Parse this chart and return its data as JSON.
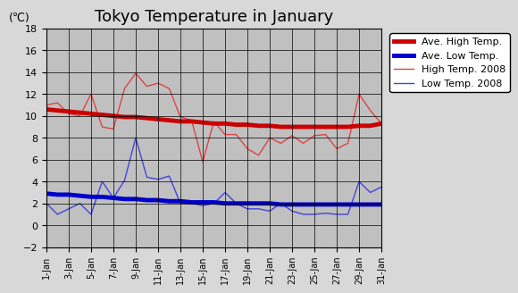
{
  "title": "Tokyo Temperature in January",
  "ylabel": "(℃)",
  "ylim": [
    -2,
    18
  ],
  "yticks": [
    -2,
    0,
    2,
    4,
    6,
    8,
    10,
    12,
    14,
    16,
    18
  ],
  "days": [
    1,
    2,
    3,
    4,
    5,
    6,
    7,
    8,
    9,
    10,
    11,
    12,
    13,
    14,
    15,
    16,
    17,
    18,
    19,
    20,
    21,
    22,
    23,
    24,
    25,
    26,
    27,
    28,
    29,
    30,
    31
  ],
  "xtick_labels": [
    "1-Jan",
    "3-Jan",
    "5-Jan",
    "7-Jan",
    "9-Jan",
    "11-Jan",
    "13-Jan",
    "15-Jan",
    "17-Jan",
    "19-Jan",
    "21-Jan",
    "23-Jan",
    "25-Jan",
    "27-Jan",
    "29-Jan",
    "31-Jan"
  ],
  "xtick_positions": [
    1,
    3,
    5,
    7,
    9,
    11,
    13,
    15,
    17,
    19,
    21,
    23,
    25,
    27,
    29,
    31
  ],
  "ave_high": [
    10.6,
    10.5,
    10.4,
    10.3,
    10.2,
    10.1,
    10.0,
    9.9,
    9.9,
    9.8,
    9.7,
    9.6,
    9.5,
    9.5,
    9.4,
    9.3,
    9.3,
    9.2,
    9.2,
    9.1,
    9.1,
    9.0,
    9.0,
    9.0,
    9.0,
    9.0,
    9.0,
    9.0,
    9.1,
    9.1,
    9.3
  ],
  "ave_low": [
    2.9,
    2.8,
    2.8,
    2.7,
    2.6,
    2.6,
    2.5,
    2.4,
    2.4,
    2.3,
    2.3,
    2.2,
    2.2,
    2.1,
    2.1,
    2.1,
    2.0,
    2.0,
    2.0,
    2.0,
    2.0,
    1.9,
    1.9,
    1.9,
    1.9,
    1.9,
    1.9,
    1.9,
    1.9,
    1.9,
    1.9
  ],
  "high_2008": [
    11.0,
    11.2,
    10.2,
    10.0,
    12.0,
    9.0,
    8.8,
    12.5,
    13.9,
    12.7,
    13.0,
    12.5,
    9.9,
    9.6,
    5.8,
    9.5,
    8.3,
    8.3,
    7.0,
    6.4,
    8.0,
    7.5,
    8.2,
    7.5,
    8.2,
    8.3,
    7.0,
    7.5,
    12.0,
    10.5,
    9.3
  ],
  "low_2008": [
    2.0,
    1.0,
    1.5,
    2.0,
    1.0,
    4.0,
    2.5,
    4.1,
    8.0,
    4.4,
    4.2,
    4.5,
    2.0,
    2.0,
    1.8,
    2.0,
    3.0,
    2.0,
    1.5,
    1.5,
    1.3,
    2.0,
    1.3,
    1.0,
    1.0,
    1.1,
    1.0,
    1.0,
    4.0,
    3.0,
    3.5
  ],
  "ave_high_color": "#cc0000",
  "ave_low_color": "#0000cc",
  "high_2008_color": "#dd4444",
  "low_2008_color": "#4444dd",
  "background_color": "#c0c0c0",
  "plot_bg_color": "#c0c0c0",
  "grid_color": "#000000",
  "legend_labels": [
    "Ave. High Temp.",
    "Ave. Low Temp.",
    "High Temp. 2008",
    "Low Temp. 2008"
  ]
}
